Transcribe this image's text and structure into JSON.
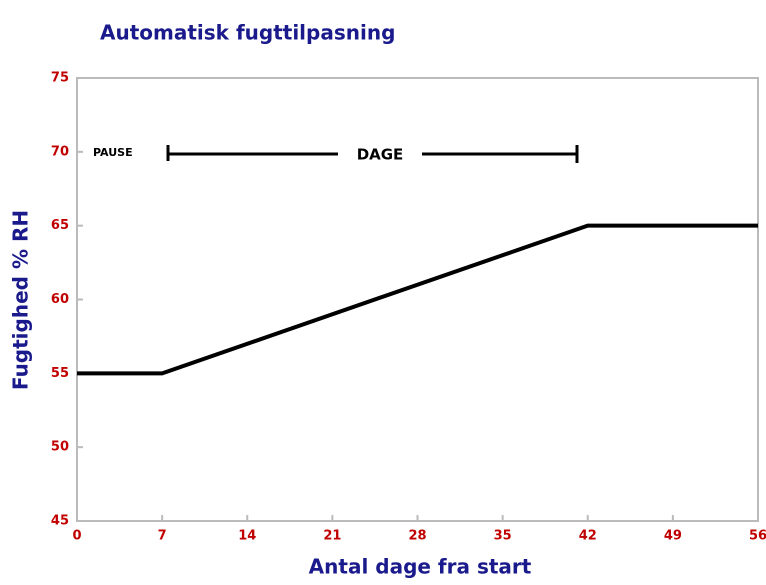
{
  "chart_data": {
    "type": "line",
    "title": "Automatisk fugttilpasning",
    "x_label": "Antal dage fra start",
    "y_label": "Fugtighed % RH",
    "x": [
      0,
      7,
      42,
      56
    ],
    "series": [
      {
        "color": "#000000",
        "values": [
          55,
          55,
          65,
          65
        ]
      }
    ],
    "xlim": [
      0,
      56
    ],
    "xticks": [
      0,
      7,
      14,
      21,
      28,
      35,
      42,
      49,
      56
    ],
    "ylim": [
      45,
      75
    ],
    "yticks": [
      45,
      50,
      55,
      60,
      65,
      70,
      75
    ],
    "annotations": [
      "PAUSE",
      "DAGE"
    ],
    "grid": false
  }
}
